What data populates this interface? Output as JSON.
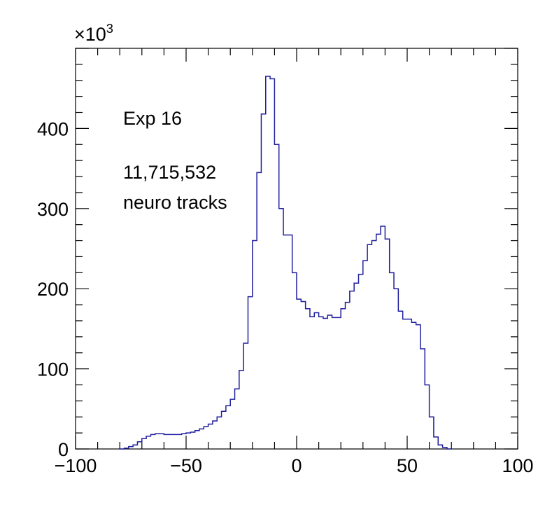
{
  "chart_data": {
    "type": "histogram",
    "title": "",
    "xlabel": "",
    "ylabel": "",
    "xlim": [
      -100,
      100
    ],
    "ylim": [
      0,
      500
    ],
    "y_multiplier": {
      "base": "×10",
      "exponent": "3"
    },
    "x_ticks": [
      -100,
      -50,
      0,
      50,
      100
    ],
    "x_tick_labels": [
      "−100",
      "−50",
      "0",
      "50",
      "100"
    ],
    "y_ticks": [
      0,
      100,
      200,
      300,
      400
    ],
    "y_tick_labels": [
      "0",
      "100",
      "200",
      "300",
      "400"
    ],
    "grid": false,
    "line_color": "#1f1f9e",
    "annotations": [
      "Exp 16",
      "11,715,532",
      "neuro tracks"
    ],
    "bin_width": 2,
    "bin_edges_start": -80,
    "values": [
      0,
      1,
      3,
      5,
      9,
      13,
      16,
      18,
      19,
      19,
      18,
      18,
      18,
      18,
      19,
      20,
      21,
      23,
      25,
      28,
      31,
      35,
      40,
      47,
      54,
      62,
      75,
      98,
      132,
      190,
      260,
      345,
      418,
      465,
      462,
      380,
      300,
      267,
      267,
      220,
      187,
      184,
      175,
      165,
      170,
      165,
      163,
      167,
      164,
      164,
      175,
      183,
      197,
      207,
      218,
      235,
      255,
      260,
      268,
      278,
      262,
      220,
      200,
      172,
      162,
      162,
      158,
      155,
      125,
      80,
      40,
      15,
      5,
      2,
      0
    ]
  }
}
